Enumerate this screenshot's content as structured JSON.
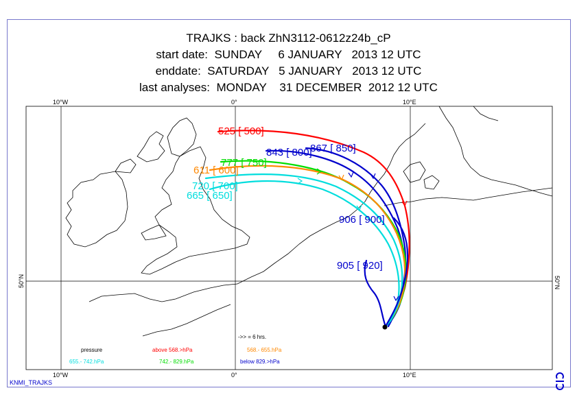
{
  "title": {
    "line1": "TRAJKS : back ZhN3112-0612z24b_cP",
    "line2": "start date:  SUNDAY     6 JANUARY   2013 12 UTC",
    "line3": "enddate:  SATURDAY   5 JANUARY   2013 12 UTC",
    "line4": "last analyses:  MONDAY    31 DECEMBER  2012 12 UTC"
  },
  "axes": {
    "lon_top": [
      "10°W",
      "0°",
      "10°E"
    ],
    "lon_bottom": [
      "10°W",
      "0°",
      "10°E"
    ],
    "lat_left": "50°N",
    "lat_right": "50°N"
  },
  "trajectories": [
    {
      "label": "525 [ 500]",
      "color": "#ff0000"
    },
    {
      "label": "867 [ 850]",
      "color": "#0000cc"
    },
    {
      "label": "843 [ 800]",
      "color": "#0000cc"
    },
    {
      "label": "777 [ 750]",
      "color": "#00dd00"
    },
    {
      "label": "611 [ 600]",
      "color": "#ff8800"
    },
    {
      "label": "720 [ 700]",
      "color": "#00dddd"
    },
    {
      "label": "665 [ 650]",
      "color": "#00dddd"
    },
    {
      "label": "906 [ 900]",
      "color": "#0000cc"
    },
    {
      "label": "905 [ 920]",
      "color": "#0000cc"
    }
  ],
  "legend": {
    "arrow_note": "->> = 6 hrs.",
    "pressure_label": "pressure",
    "items": [
      {
        "text": "above  568.>hPa",
        "color": "#ff0000"
      },
      {
        "text": "568.-   655.hPa",
        "color": "#ff8800"
      },
      {
        "text": "655.-   742.hPa",
        "color": "#00dddd"
      },
      {
        "text": "742.-   829.hPa",
        "color": "#00dd00"
      },
      {
        "text": "below  829.>hPa",
        "color": "#0000cc"
      }
    ]
  },
  "footer": {
    "source": "KNMI_TRAJKS"
  },
  "logo_icon": "ecmwf-logo-icon"
}
